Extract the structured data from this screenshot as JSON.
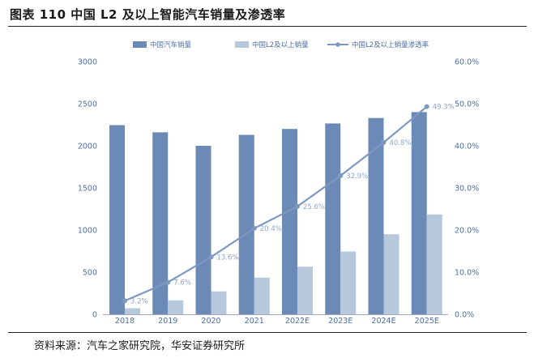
{
  "figure": {
    "title": "图表 110 中国 L2 及以上智能汽车销量及渗透率",
    "source": "资料来源：汽车之家研究院，华安证券研究所"
  },
  "colors": {
    "bar_total": "#6b8ab5",
    "bar_l2": "#b7c7dc",
    "line": "#7e98c2",
    "axis_text": "#4a6fa5",
    "data_label": "#8fa6c8"
  },
  "chart_data": {
    "type": "bar",
    "categories": [
      "2018",
      "2019",
      "2020",
      "2021",
      "2022E",
      "2023E",
      "2024E",
      "2025E"
    ],
    "series": [
      {
        "name": "中国汽车销量",
        "type": "bar",
        "axis": "left",
        "values": [
          2245,
          2160,
          2000,
          2130,
          2200,
          2265,
          2330,
          2400
        ]
      },
      {
        "name": "中国L2及以上销量",
        "type": "bar",
        "axis": "left",
        "values": [
          72,
          165,
          272,
          435,
          565,
          745,
          950,
          1185
        ]
      },
      {
        "name": "中国L2及以上销量渗透率",
        "type": "line",
        "axis": "right",
        "values": [
          3.2,
          7.6,
          13.6,
          20.4,
          25.6,
          32.9,
          40.8,
          49.3
        ],
        "labels": [
          "3.2%",
          "7.6%",
          "13.6%",
          "20.4%",
          "25.6%",
          "32.9%",
          "40.8%",
          "49.3%"
        ]
      }
    ],
    "ylim": [
      0,
      3000
    ],
    "yticks": [
      "0",
      "500",
      "1000",
      "1500",
      "2000",
      "2500",
      "3000"
    ],
    "y2lim": [
      0,
      60
    ],
    "y2ticks": [
      "0.0%",
      "10.0%",
      "20.0%",
      "30.0%",
      "40.0%",
      "50.0%",
      "60.0%"
    ],
    "legend_position": "top",
    "grid": false
  }
}
